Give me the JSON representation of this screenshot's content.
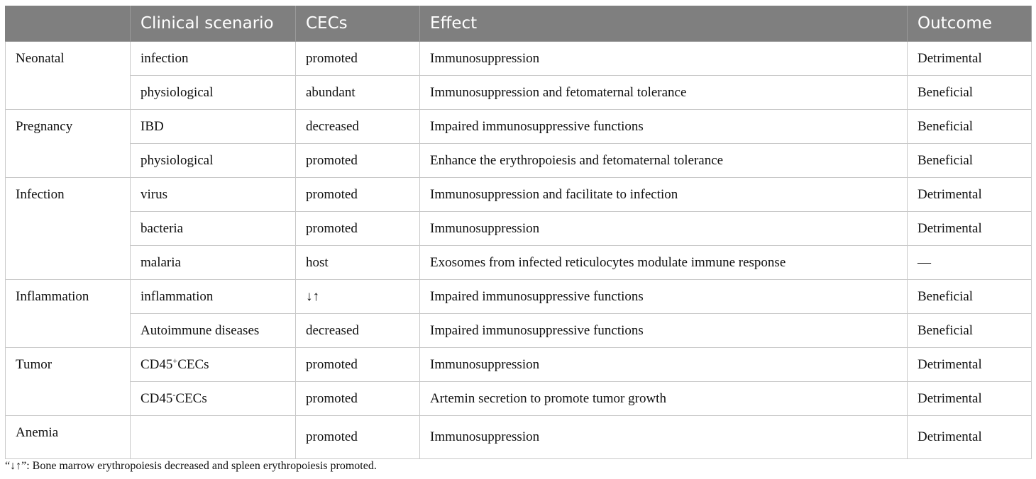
{
  "headers": [
    "",
    "Clinical scenario",
    "CECs",
    "Effect",
    "Outcome"
  ],
  "groups": [
    {
      "name": "Neonatal",
      "rows": [
        {
          "scenario": "infection",
          "cecs": "promoted",
          "effect": "Immunosuppression",
          "outcome": "Detrimental"
        },
        {
          "scenario": "physiological",
          "cecs": "abundant",
          "effect": "Immunosuppression and fetomaternal tolerance",
          "outcome": "Beneficial"
        }
      ]
    },
    {
      "name": "Pregnancy",
      "rows": [
        {
          "scenario": "IBD",
          "cecs": "decreased",
          "effect": "Impaired immunosuppressive functions",
          "outcome": "Beneficial"
        },
        {
          "scenario": "physiological",
          "cecs": "promoted",
          "effect": "Enhance the erythropoiesis and fetomaternal tolerance",
          "outcome": "Beneficial"
        }
      ]
    },
    {
      "name": "Infection",
      "rows": [
        {
          "scenario": "virus",
          "cecs": "promoted",
          "effect": "Immunosuppression and facilitate to infection",
          "outcome": "Detrimental"
        },
        {
          "scenario": "bacteria",
          "cecs": "promoted",
          "effect": "Immunosuppression",
          "outcome": "Detrimental"
        },
        {
          "scenario": "malaria",
          "cecs": "host",
          "effect": "Exosomes from infected reticulocytes modulate immune response",
          "outcome": "—"
        }
      ]
    },
    {
      "name": "Inflammation",
      "rows": [
        {
          "scenario": "inflammation",
          "cecs": "↓↑",
          "effect": "Impaired immunosuppressive functions",
          "outcome": "Beneficial"
        },
        {
          "scenario": "Autoimmune diseases",
          "cecs": "decreased",
          "effect": "Impaired immunosuppressive functions",
          "outcome": "Beneficial"
        }
      ]
    },
    {
      "name": "Tumor",
      "rows": [
        {
          "scenario": "CD45",
          "scenario_sup": "+",
          "scenario_suffix": "CECs",
          "cecs": "promoted",
          "effect": "Immunosuppression",
          "outcome": "Detrimental"
        },
        {
          "scenario": "CD45",
          "scenario_sup": "-",
          "scenario_suffix": "CECs",
          "cecs": "promoted",
          "effect": "Artemin secretion to promote tumor growth",
          "outcome": "Detrimental"
        }
      ]
    },
    {
      "name": "Anemia",
      "rows": [
        {
          "scenario": "",
          "cecs": "promoted",
          "effect": "Immunosuppression",
          "outcome": "Detrimental"
        }
      ]
    }
  ],
  "footnote": "“↓↑”: Bone marrow erythropoiesis decreased and spleen erythropoiesis promoted."
}
